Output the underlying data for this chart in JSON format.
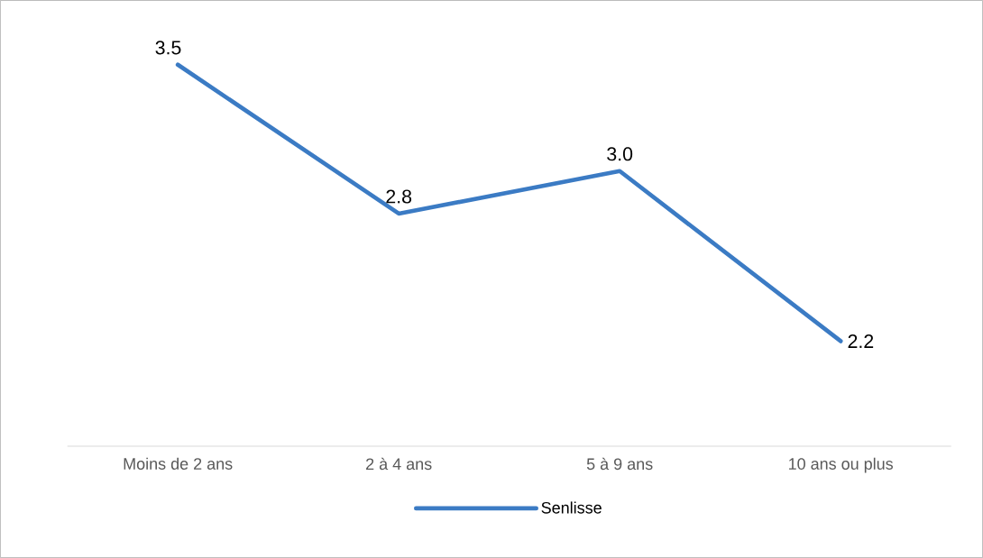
{
  "chart_data": {
    "type": "line",
    "categories": [
      "Moins de 2 ans",
      "2 à 4 ans",
      "5 à 9 ans",
      "10 ans ou plus"
    ],
    "series": [
      {
        "name": "Senlisse",
        "color": "#3b7bc4",
        "values": [
          3.5,
          2.8,
          3.0,
          2.2
        ],
        "value_labels": [
          "3.5",
          "2.8",
          "3.0",
          "2.2"
        ]
      }
    ],
    "legend": "bottom",
    "marker": "none",
    "line_style": "solid"
  }
}
